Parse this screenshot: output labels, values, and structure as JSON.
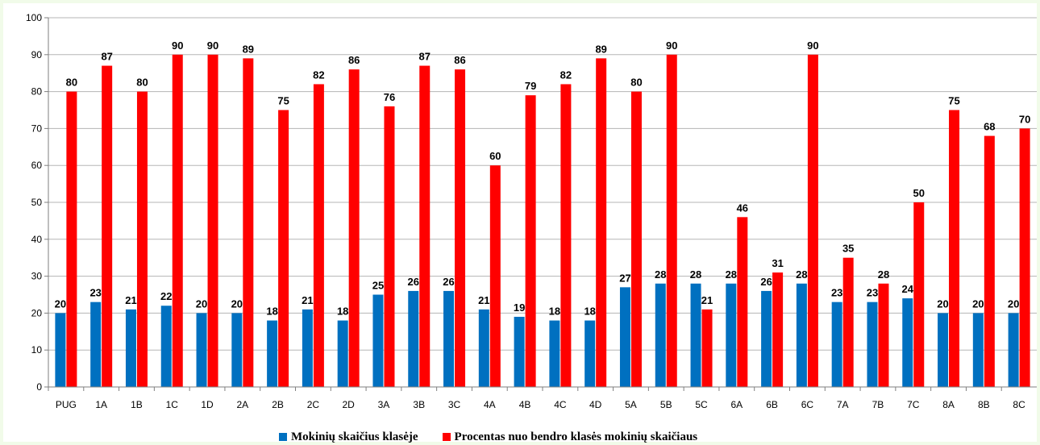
{
  "colors": {
    "series1": "#0070c0",
    "series2": "#ff0000",
    "grid": "#b5b5b5",
    "axis": "#7f7f7f",
    "background": "#f1fbe9"
  },
  "chart_data": {
    "type": "bar",
    "title": "",
    "xlabel": "",
    "ylabel": "",
    "ylim": [
      0,
      100
    ],
    "yticks": [
      0,
      10,
      20,
      30,
      40,
      50,
      60,
      70,
      80,
      90,
      100
    ],
    "grid": true,
    "legend_position": "bottom",
    "categories": [
      "PUG",
      "1A",
      "1B",
      "1C",
      "1D",
      "2A",
      "2B",
      "2C",
      "2D",
      "3A",
      "3B",
      "3C",
      "4A",
      "4B",
      "4C",
      "4D",
      "5A",
      "5B",
      "5C",
      "6A",
      "6B",
      "6C",
      "7A",
      "7B",
      "7C",
      "8A",
      "8B",
      "8C"
    ],
    "series": [
      {
        "name": "Mokinių skaičius klasėje",
        "color": "#0070c0",
        "values": [
          20,
          23,
          21,
          22,
          20,
          20,
          18,
          21,
          18,
          25,
          26,
          26,
          21,
          19,
          18,
          18,
          27,
          28,
          28,
          28,
          26,
          28,
          23,
          23,
          24,
          20,
          20,
          20
        ]
      },
      {
        "name": "Procentas nuo bendro klasės mokinių skaičiaus",
        "color": "#ff0000",
        "values": [
          80,
          87,
          80,
          90,
          90,
          89,
          75,
          82,
          86,
          76,
          87,
          86,
          60,
          79,
          82,
          89,
          80,
          90,
          21,
          46,
          31,
          90,
          35,
          28,
          50,
          75,
          68,
          70
        ]
      }
    ]
  }
}
